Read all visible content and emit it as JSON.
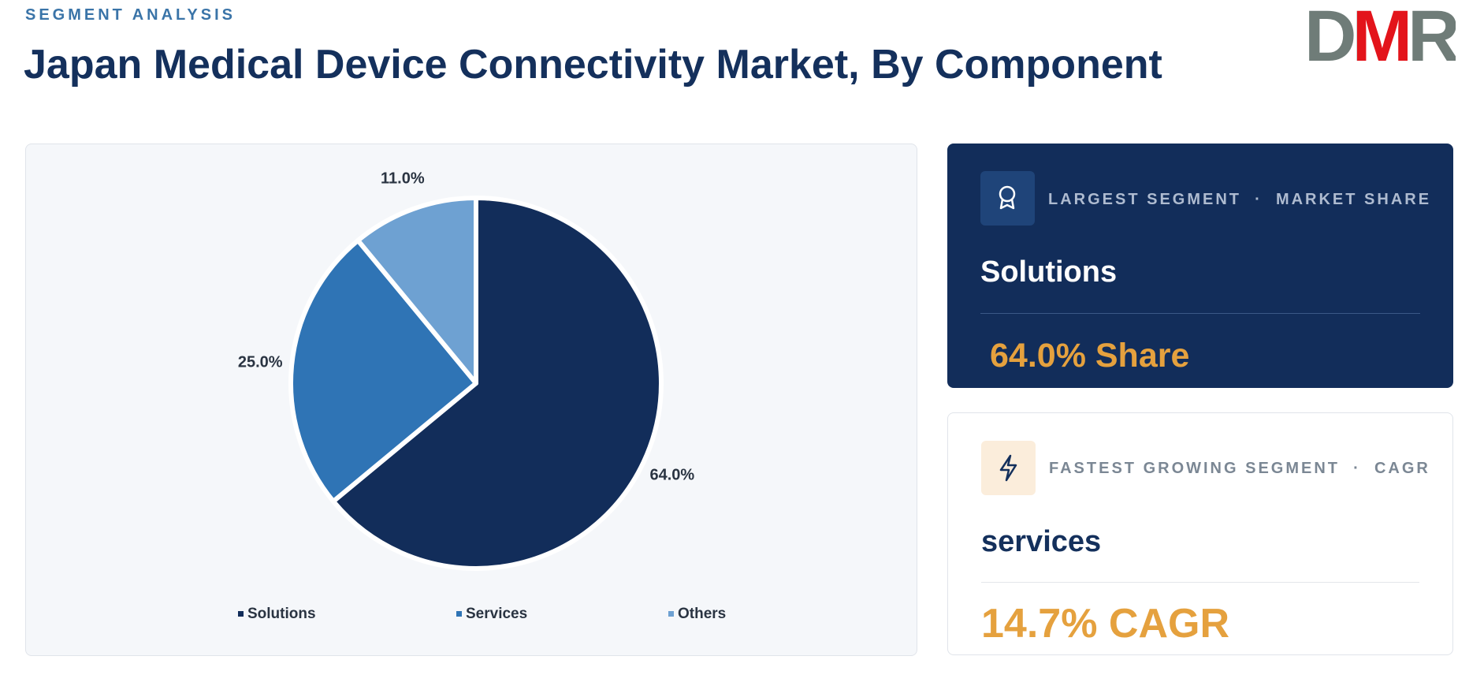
{
  "header": {
    "eyebrow": "SEGMENT ANALYSIS",
    "title": "Japan Medical Device Connectivity Market, By Component",
    "logo": "DMR"
  },
  "chart_data": {
    "type": "pie",
    "categories": [
      "Solutions",
      "Services",
      "Others"
    ],
    "values": [
      64.0,
      25.0,
      11.0
    ],
    "value_labels": [
      "64.0%",
      "25.0%",
      "11.0%"
    ],
    "colors": [
      "#122d5a",
      "#2f74b5",
      "#6ea1d2"
    ]
  },
  "cards": [
    {
      "label": "LARGEST SEGMENT",
      "sep": "·",
      "metric": "MARKET SHARE",
      "segment": "Solutions",
      "value": "64.0% Share"
    },
    {
      "label": "FASTEST GROWING SEGMENT",
      "sep": "·",
      "metric": "CAGR",
      "segment": "services",
      "value": "14.7% CAGR"
    }
  ]
}
